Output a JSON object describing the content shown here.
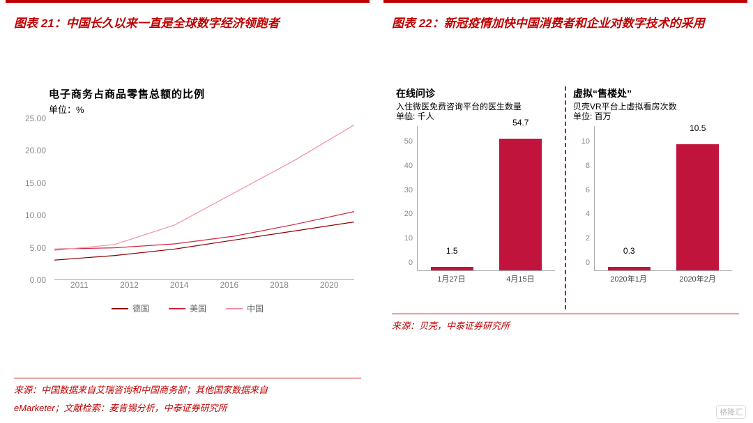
{
  "left": {
    "title": "图表 21：中国长久以来一直是全球数字经济领跑者",
    "chart": {
      "type": "line",
      "title": "电子商务占商品零售总额的比例",
      "unit_label": "单位：%",
      "x_labels": [
        "2011",
        "2012",
        "2014",
        "2016",
        "2018",
        "2020"
      ],
      "y_min": 0,
      "y_max": 25,
      "y_step": 5,
      "y_format": "fixed2",
      "tick_color": "#888888",
      "axis_color": "#aaaaaa",
      "title_fontsize": 15,
      "tick_fontsize": 12,
      "series": [
        {
          "name": "德国",
          "label": "德国",
          "color": "#8b0000",
          "width": 2,
          "values": [
            3.1,
            3.8,
            4.8,
            6.2,
            7.6,
            9.0
          ]
        },
        {
          "name": "美国",
          "label": "美国",
          "color": "#d0263f",
          "width": 2,
          "values": [
            4.8,
            5.0,
            5.6,
            6.8,
            8.6,
            10.6
          ]
        },
        {
          "name": "中国",
          "label": "中国",
          "color": "#f48fa0",
          "width": 2,
          "values": [
            4.6,
            5.5,
            8.5,
            13.5,
            18.5,
            24.0
          ]
        }
      ]
    },
    "source": "来源：中国数据来自艾瑞咨询和中国商务部；其他国家数据来自\neMarketer；文献检索：麦肯锡分析，中泰证券研究所"
  },
  "right": {
    "title": "图表 22：新冠疫情加快中国消费者和企业对数字技术的采用",
    "sub": [
      {
        "type": "bar",
        "title": "在线问诊",
        "desc": "入住微医免费咨询平台的医生数量\n单位: 千人",
        "y_min": 0,
        "y_max": 60,
        "y_step": 10,
        "bar_color": "#c0143c",
        "categories": [
          "1月27日",
          "4月15日"
        ],
        "values": [
          1.5,
          54.7
        ]
      },
      {
        "type": "bar",
        "title": "虚拟“售楼处”",
        "desc": "贝壳VR平台上虚拟看房次数\n单位: 百万",
        "y_min": 0,
        "y_max": 12,
        "y_step": 2,
        "bar_color": "#c0143c",
        "categories": [
          "2020年1月",
          "2020年2月"
        ],
        "values": [
          0.3,
          10.5
        ]
      }
    ],
    "source": "来源：贝壳，中泰证券研究所"
  },
  "colors": {
    "accent": "#c00000",
    "background": "#ffffff"
  },
  "watermark": "格隆汇"
}
